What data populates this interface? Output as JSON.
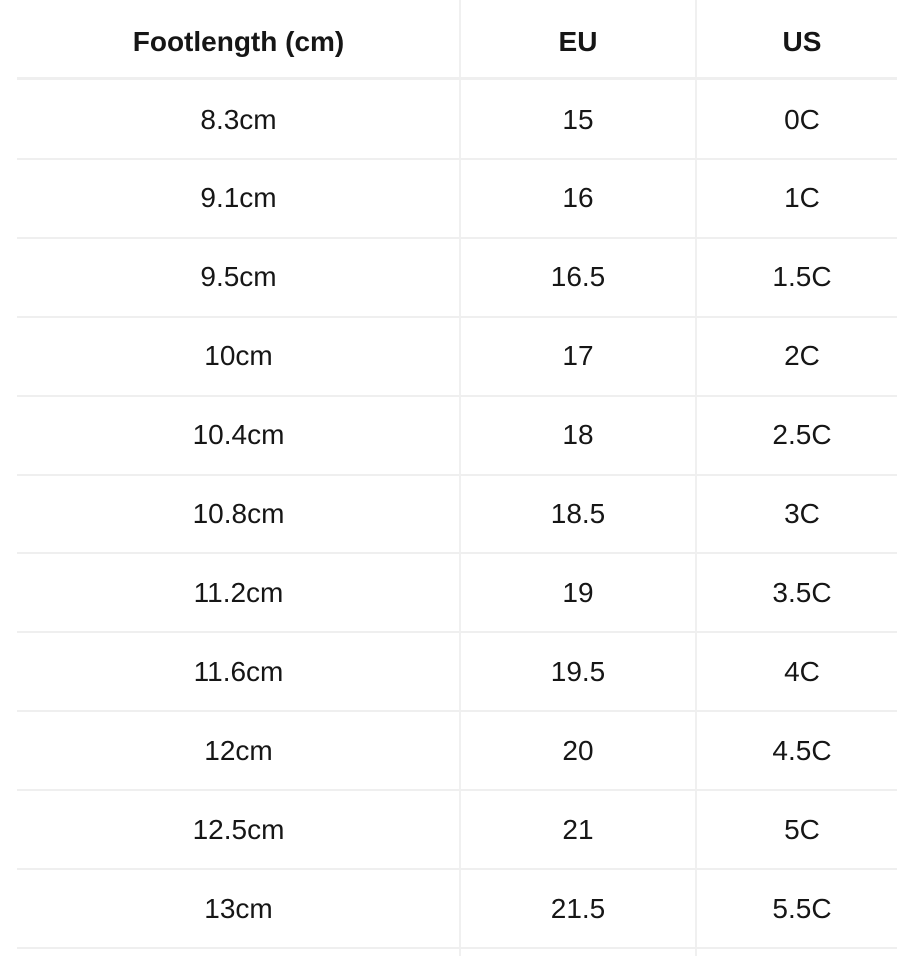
{
  "table": {
    "header": [
      "Footlength (cm)",
      "EU",
      "US"
    ],
    "rows": [
      [
        "8.3cm",
        "15",
        "0C"
      ],
      [
        "9.1cm",
        "16",
        "1C"
      ],
      [
        "9.5cm",
        "16.5",
        "1.5C"
      ],
      [
        "10cm",
        "17",
        "2C"
      ],
      [
        "10.4cm",
        "18",
        "2.5C"
      ],
      [
        "10.8cm",
        "18.5",
        "3C"
      ],
      [
        "11.2cm",
        "19",
        "3.5C"
      ],
      [
        "11.6cm",
        "19.5",
        "4C"
      ],
      [
        "12cm",
        "20",
        "4.5C"
      ],
      [
        "12.5cm",
        "21",
        "5C"
      ],
      [
        "13cm",
        "21.5",
        "5.5C"
      ]
    ]
  }
}
